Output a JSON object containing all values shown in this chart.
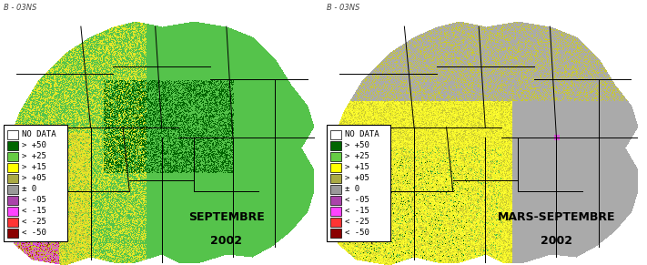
{
  "legend_entries": [
    {
      "label": "< -50",
      "color": "#8B0000"
    },
    {
      "label": "< -25",
      "color": "#FF3333"
    },
    {
      "label": "< -15",
      "color": "#FF44FF"
    },
    {
      "label": "< -05",
      "color": "#AA44AA"
    },
    {
      "label": "± 0",
      "color": "#999999"
    },
    {
      "label": "> +05",
      "color": "#AAAA44"
    },
    {
      "label": "> +15",
      "color": "#FFFF00"
    },
    {
      "label": "> +25",
      "color": "#66CC44"
    },
    {
      "label": "> +50",
      "color": "#006600"
    },
    {
      "label": "NO DATA",
      "color": "#FFFFFF"
    }
  ],
  "panel1_title_line1": "SEPTEMBRE",
  "panel1_title_line2": "2002",
  "panel2_title_line1": "MARS-SEPTEMBRE",
  "panel2_title_line2": "2002",
  "watermark": "B - 03NS",
  "bg_color": "#FFFFFF",
  "title_fontsize": 9,
  "legend_fontsize": 6.5,
  "watermark_fontsize": 6,
  "map_bg": "#BBBBBB",
  "panel_bg": "#FFFFFF"
}
